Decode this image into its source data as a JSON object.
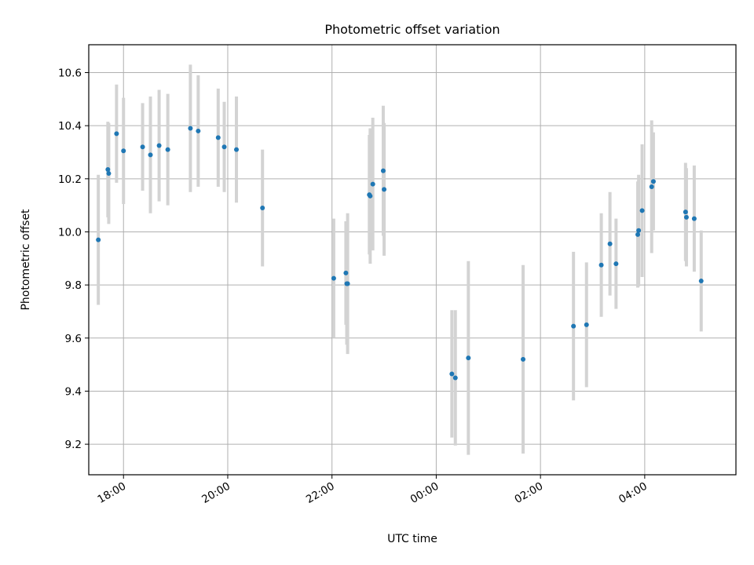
{
  "chart_data": {
    "type": "scatter",
    "title": "Photometric offset variation",
    "xlabel": "UTC time",
    "ylabel": "Photometric offset",
    "xlim": [
      "17:20",
      "05:45"
    ],
    "ylim": [
      9.085,
      10.705
    ],
    "grid": true,
    "x_ticks": [
      {
        "time": "18:00",
        "label": "18:00"
      },
      {
        "time": "20:00",
        "label": "20:00"
      },
      {
        "time": "22:00",
        "label": "22:00"
      },
      {
        "time": "00:00",
        "label": "00:00"
      },
      {
        "time": "02:00",
        "label": "02:00"
      },
      {
        "time": "04:00",
        "label": "04:00"
      }
    ],
    "y_ticks": [
      {
        "value": 9.2,
        "label": "9.2"
      },
      {
        "value": 9.4,
        "label": "9.4"
      },
      {
        "value": 9.6,
        "label": "9.6"
      },
      {
        "value": 9.8,
        "label": "9.8"
      },
      {
        "value": 10.0,
        "label": "10.0"
      },
      {
        "value": 10.2,
        "label": "10.2"
      },
      {
        "value": 10.4,
        "label": "10.4"
      },
      {
        "value": 10.6,
        "label": "10.6"
      }
    ],
    "colors": {
      "point": "#1f77b4",
      "errorbar": "#d3d3d3",
      "grid": "#b0b0b0"
    },
    "points": [
      {
        "time": "17:31",
        "y": 9.97,
        "err": 0.245
      },
      {
        "time": "17:42",
        "y": 10.235,
        "err": 0.18
      },
      {
        "time": "17:43",
        "y": 10.22,
        "err": 0.19
      },
      {
        "time": "17:52",
        "y": 10.37,
        "err": 0.185
      },
      {
        "time": "18:00",
        "y": 10.305,
        "err": 0.2
      },
      {
        "time": "18:22",
        "y": 10.32,
        "err": 0.165
      },
      {
        "time": "18:31",
        "y": 10.29,
        "err": 0.22
      },
      {
        "time": "18:41",
        "y": 10.325,
        "err": 0.21
      },
      {
        "time": "18:51",
        "y": 10.31,
        "err": 0.21
      },
      {
        "time": "19:17",
        "y": 10.39,
        "err": 0.24
      },
      {
        "time": "19:26",
        "y": 10.38,
        "err": 0.21
      },
      {
        "time": "19:49",
        "y": 10.355,
        "err": 0.185
      },
      {
        "time": "19:56",
        "y": 10.32,
        "err": 0.17
      },
      {
        "time": "20:10",
        "y": 10.31,
        "err": 0.2
      },
      {
        "time": "20:40",
        "y": 10.09,
        "err": 0.22
      },
      {
        "time": "22:02",
        "y": 9.825,
        "err": 0.225
      },
      {
        "time": "22:16",
        "y": 9.845,
        "err": 0.195
      },
      {
        "time": "22:17",
        "y": 9.805,
        "err": 0.23
      },
      {
        "time": "22:18",
        "y": 9.805,
        "err": 0.265
      },
      {
        "time": "22:43",
        "y": 10.14,
        "err": 0.225
      },
      {
        "time": "22:44",
        "y": 10.135,
        "err": 0.255
      },
      {
        "time": "22:47",
        "y": 10.18,
        "err": 0.25
      },
      {
        "time": "22:59",
        "y": 10.23,
        "err": 0.245
      },
      {
        "time": "23:00",
        "y": 10.16,
        "err": 0.25
      },
      {
        "time": "00:18",
        "y": 9.465,
        "err": 0.24
      },
      {
        "time": "00:22",
        "y": 9.45,
        "err": 0.255
      },
      {
        "time": "00:37",
        "y": 9.525,
        "err": 0.365
      },
      {
        "time": "01:40",
        "y": 9.52,
        "err": 0.355
      },
      {
        "time": "02:38",
        "y": 9.645,
        "err": 0.28
      },
      {
        "time": "02:53",
        "y": 9.65,
        "err": 0.235
      },
      {
        "time": "03:10",
        "y": 9.875,
        "err": 0.195
      },
      {
        "time": "03:20",
        "y": 9.955,
        "err": 0.195
      },
      {
        "time": "03:27",
        "y": 9.88,
        "err": 0.17
      },
      {
        "time": "03:52",
        "y": 9.99,
        "err": 0.2
      },
      {
        "time": "03:53",
        "y": 10.005,
        "err": 0.21
      },
      {
        "time": "03:57",
        "y": 10.08,
        "err": 0.25
      },
      {
        "time": "04:08",
        "y": 10.17,
        "err": 0.25
      },
      {
        "time": "04:10",
        "y": 10.19,
        "err": 0.185
      },
      {
        "time": "04:47",
        "y": 10.075,
        "err": 0.185
      },
      {
        "time": "04:48",
        "y": 10.055,
        "err": 0.185
      },
      {
        "time": "04:57",
        "y": 10.05,
        "err": 0.2
      },
      {
        "time": "05:05",
        "y": 9.815,
        "err": 0.19
      }
    ]
  }
}
